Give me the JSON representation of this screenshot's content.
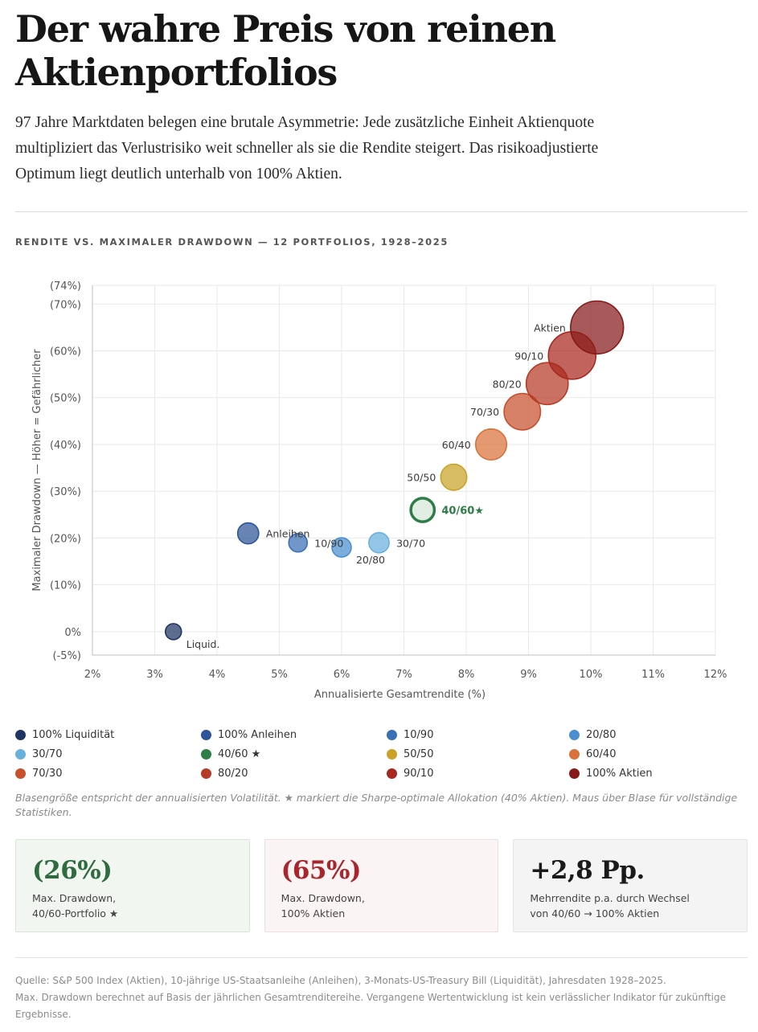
{
  "header": {
    "title": "Der wahre Preis von reinen Aktienportfolios",
    "subtitle": "97 Jahre Marktdaten belegen eine brutale Asymmetrie: Jede zusätzliche Einheit Aktienquote multipliziert das Verlustrisiko weit schneller als sie die Rendite steigert. Das risikoadjustierte Optimum liegt deutlich unterhalb von 100% Aktien.",
    "section_label": "RENDITE VS. MAXIMALER DRAWDOWN — 12 PORTFOLIOS, 1928–2025"
  },
  "chart_data": {
    "type": "scatter",
    "variant": "bubble",
    "title": "RENDITE VS. MAXIMALER DRAWDOWN — 12 PORTFOLIOS, 1928–2025",
    "xlabel": "Annualisierte Gesamtrendite (%)",
    "ylabel": "Maximaler Drawdown — Höher = Gefährlicher",
    "xlim": [
      2,
      12
    ],
    "ylim": [
      -5,
      74
    ],
    "x_ticks": [
      2,
      3,
      4,
      5,
      6,
      7,
      8,
      9,
      10,
      11,
      12
    ],
    "x_tick_labels": [
      "2%",
      "3%",
      "4%",
      "5%",
      "6%",
      "7%",
      "8%",
      "9%",
      "10%",
      "11%",
      "12%"
    ],
    "y_ticks": [
      -5,
      0,
      10,
      20,
      30,
      40,
      50,
      60,
      70,
      74
    ],
    "y_tick_labels": [
      "(-5%)",
      "0%",
      "(10%)",
      "(20%)",
      "(30%)",
      "(40%)",
      "(50%)",
      "(60%)",
      "(70%)",
      "(74%)"
    ],
    "size_meaning": "annualisierte Volatilität",
    "grid": true,
    "series": [
      {
        "name": "100% Liquidität",
        "label": "Liquid.",
        "x": 3.3,
        "y": 0,
        "volatility": 3,
        "color": "#1f3563",
        "label_pos": "below-right"
      },
      {
        "name": "100% Anleihen",
        "label": "Anleihen",
        "x": 4.5,
        "y": 21,
        "volatility": 7.5,
        "color": "#2e5597",
        "label_pos": "right"
      },
      {
        "name": "10/90",
        "label": "10/90",
        "x": 5.3,
        "y": 19,
        "volatility": 6.5,
        "color": "#3a6fb5",
        "label_pos": "right"
      },
      {
        "name": "20/80",
        "label": "20/80",
        "x": 6.0,
        "y": 18,
        "volatility": 6.8,
        "color": "#4a8fd0",
        "label_pos": "below-right"
      },
      {
        "name": "30/70",
        "label": "30/70",
        "x": 6.6,
        "y": 19,
        "volatility": 7.2,
        "color": "#6ab0dc",
        "label_pos": "right"
      },
      {
        "name": "40/60 ★",
        "label": "40/60★",
        "x": 7.3,
        "y": 26,
        "volatility": 8.5,
        "color": "#2e7d46",
        "label_pos": "right",
        "highlight": true
      },
      {
        "name": "50/50",
        "label": "50/50",
        "x": 7.8,
        "y": 33,
        "volatility": 9.5,
        "color": "#c9a227",
        "label_pos": "left"
      },
      {
        "name": "60/40",
        "label": "60/40",
        "x": 8.4,
        "y": 40,
        "volatility": 11,
        "color": "#d9723a",
        "label_pos": "left"
      },
      {
        "name": "70/30",
        "label": "70/30",
        "x": 8.9,
        "y": 47,
        "volatility": 12.5,
        "color": "#c8502e",
        "label_pos": "left"
      },
      {
        "name": "80/20",
        "label": "80/20",
        "x": 9.3,
        "y": 53,
        "volatility": 14,
        "color": "#b73a27",
        "label_pos": "left"
      },
      {
        "name": "90/10",
        "label": "90/10",
        "x": 9.7,
        "y": 59,
        "volatility": 15.5,
        "color": "#a8281f",
        "label_pos": "left"
      },
      {
        "name": "100% Aktien",
        "label": "Aktien",
        "x": 10.1,
        "y": 65,
        "volatility": 17,
        "color": "#861a1a",
        "label_pos": "left"
      }
    ]
  },
  "legend": {
    "items": [
      {
        "label": "100% Liquidität",
        "color": "#1f3563"
      },
      {
        "label": "100% Anleihen",
        "color": "#2e5597"
      },
      {
        "label": "10/90",
        "color": "#3a6fb5"
      },
      {
        "label": "20/80",
        "color": "#4a8fd0"
      },
      {
        "label": "30/70",
        "color": "#6ab0dc"
      },
      {
        "label": "40/60 ★",
        "color": "#2e7d46"
      },
      {
        "label": "50/50",
        "color": "#c9a227"
      },
      {
        "label": "60/40",
        "color": "#d9723a"
      },
      {
        "label": "70/30",
        "color": "#c8502e"
      },
      {
        "label": "80/20",
        "color": "#b73a27"
      },
      {
        "label": "90/10",
        "color": "#a8281f"
      },
      {
        "label": "100% Aktien",
        "color": "#861a1a"
      }
    ]
  },
  "note": "Blasengröße entspricht der annualisierten Volatilität. ★ markiert die Sharpe-optimale Allokation (40% Aktien). Maus über Blase für vollständige Statistiken.",
  "cards": [
    {
      "value": "(26%)",
      "label": "Max. Drawdown,\n40/60-Portfolio ★",
      "color": "#2e6b3f"
    },
    {
      "value": "(65%)",
      "label": "Max. Drawdown,\n100% Aktien",
      "color": "#a8262b"
    },
    {
      "value": "+2,8 Pp.",
      "label": "Mehrrendite p.a. durch Wechsel\nvon 40/60 → 100% Aktien",
      "color": "#1a1a1a"
    }
  ],
  "source": {
    "line1": "Quelle: S&P 500 Index (Aktien), 10-jährige US-Staatsanleihe (Anleihen), 3-Monats-US-Treasury Bill (Liquidität), Jahresdaten 1928–2025.",
    "line2": "Max. Drawdown berechnet auf Basis der jährlichen Gesamtrenditereihe. Vergangene Wertentwicklung ist kein verlässlicher Indikator für zukünftige Ergebnisse."
  }
}
